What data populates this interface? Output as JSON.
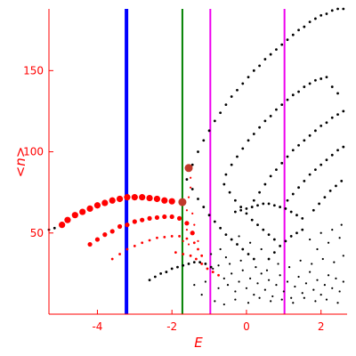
{
  "chart_data": {
    "type": "scatter",
    "xlabel": "E",
    "ylabel": "<n>",
    "xlim": [
      -5.3,
      2.7
    ],
    "ylim": [
      0,
      188
    ],
    "xticks": [
      "-4",
      "-2",
      "0",
      "2"
    ],
    "yticks": [
      "50",
      "100",
      "150"
    ],
    "xtick_values": [
      -4,
      -2,
      0,
      2
    ],
    "ytick_values": [
      50,
      100,
      150
    ],
    "grid": false,
    "colors": {
      "axis": "#ff0000",
      "points_black": "#000000",
      "points_red": "#ff0000",
      "highlight": "#c0392b",
      "blue_line": "#0000ff",
      "green_line": "#008000",
      "magenta_line": "#ee00ee"
    },
    "vertical_lines": [
      {
        "x": -3.22,
        "color": "#0000ff",
        "style": "thick"
      },
      {
        "x": -1.72,
        "color": "#008000",
        "style": "medium"
      },
      {
        "x": -0.97,
        "color": "#ee00ee",
        "style": "medium"
      },
      {
        "x": 1.02,
        "color": "#ee00ee",
        "style": "medium"
      }
    ],
    "highlight_points": [
      {
        "x": -1.72,
        "y": 69
      },
      {
        "x": -1.55,
        "y": 90
      }
    ],
    "series": [
      {
        "color": "#ff0000",
        "size": "large",
        "points": [
          [
            -4.95,
            55
          ],
          [
            -4.8,
            58
          ],
          [
            -4.6,
            61
          ],
          [
            -4.4,
            63
          ],
          [
            -4.2,
            65
          ],
          [
            -4.0,
            67
          ],
          [
            -3.8,
            68.5
          ],
          [
            -3.6,
            70
          ],
          [
            -3.4,
            71
          ],
          [
            -3.2,
            72
          ],
          [
            -3.0,
            72
          ],
          [
            -2.8,
            72
          ],
          [
            -2.6,
            71.5
          ],
          [
            -2.4,
            71
          ],
          [
            -2.2,
            70
          ],
          [
            -2.0,
            69.5
          ]
        ]
      },
      {
        "color": "#ff0000",
        "size": "medium",
        "points": [
          [
            -4.2,
            43
          ],
          [
            -4.0,
            46
          ],
          [
            -3.8,
            49
          ],
          [
            -3.6,
            51
          ],
          [
            -3.4,
            54
          ],
          [
            -3.2,
            55
          ],
          [
            -3.0,
            57
          ],
          [
            -2.8,
            58
          ],
          [
            -2.6,
            59
          ],
          [
            -2.4,
            59.5
          ],
          [
            -2.2,
            60
          ],
          [
            -2.0,
            60
          ],
          [
            -1.8,
            59
          ],
          [
            -1.6,
            56
          ],
          [
            -1.45,
            50
          ]
        ]
      },
      {
        "color": "#ff0000",
        "size": "small",
        "points": [
          [
            -3.6,
            34
          ],
          [
            -3.4,
            37
          ],
          [
            -3.2,
            40
          ],
          [
            -3.0,
            42
          ],
          [
            -2.8,
            44
          ],
          [
            -2.6,
            45.5
          ],
          [
            -2.4,
            47
          ],
          [
            -2.2,
            47.5
          ],
          [
            -2.0,
            48
          ],
          [
            -1.8,
            48
          ],
          [
            -1.6,
            46.5
          ],
          [
            -1.4,
            44
          ],
          [
            -1.3,
            40
          ],
          [
            -1.2,
            36
          ]
        ]
      },
      {
        "color": "#ff0000",
        "size": "small",
        "points": [
          [
            -1.9,
            38
          ],
          [
            -1.7,
            37
          ],
          [
            -1.5,
            36
          ],
          [
            -1.35,
            34
          ],
          [
            -1.2,
            31
          ],
          [
            -1.05,
            28
          ],
          [
            -0.9,
            26
          ],
          [
            -0.75,
            24
          ]
        ]
      },
      {
        "color": "#ff0000",
        "size": "tiny",
        "points": [
          [
            -1.6,
            64
          ],
          [
            -1.55,
            72
          ],
          [
            -1.5,
            78
          ],
          [
            -1.5,
            84
          ],
          [
            -1.45,
            62
          ],
          [
            -1.4,
            55
          ],
          [
            -1.6,
            52
          ],
          [
            -1.7,
            45
          ],
          [
            -1.55,
            43
          ],
          [
            -1.3,
            45
          ]
        ]
      },
      {
        "color": "#000000",
        "size": "small",
        "points": [
          [
            -5.3,
            52
          ],
          [
            -5.15,
            53
          ]
        ]
      },
      {
        "color": "#000000",
        "size": "small",
        "points": [
          [
            -1.45,
            92
          ],
          [
            -1.3,
            100
          ],
          [
            -1.15,
            107
          ],
          [
            -1.0,
            113
          ],
          [
            -0.85,
            119
          ],
          [
            -0.7,
            124
          ],
          [
            -0.55,
            129
          ],
          [
            -0.4,
            134
          ],
          [
            -0.25,
            138
          ],
          [
            -0.1,
            142
          ],
          [
            0.05,
            146
          ],
          [
            0.2,
            150
          ],
          [
            0.35,
            153
          ],
          [
            0.5,
            157
          ],
          [
            0.65,
            160
          ],
          [
            0.8,
            163
          ],
          [
            0.95,
            166
          ],
          [
            1.1,
            169
          ],
          [
            1.25,
            172
          ],
          [
            1.4,
            175
          ],
          [
            1.55,
            177
          ],
          [
            1.7,
            180
          ],
          [
            1.85,
            182
          ],
          [
            2.0,
            184
          ],
          [
            2.15,
            185
          ],
          [
            2.3,
            187
          ],
          [
            2.45,
            188
          ],
          [
            2.6,
            188
          ]
        ]
      },
      {
        "color": "#000000",
        "size": "small",
        "points": [
          [
            -0.55,
            86
          ],
          [
            -0.4,
            92
          ],
          [
            -0.25,
            97
          ],
          [
            -0.1,
            102
          ],
          [
            0.05,
            107
          ],
          [
            0.2,
            111
          ],
          [
            0.35,
            115
          ],
          [
            0.5,
            119
          ],
          [
            0.65,
            122
          ],
          [
            0.8,
            126
          ],
          [
            0.95,
            129
          ],
          [
            1.1,
            132
          ],
          [
            1.25,
            135
          ],
          [
            1.4,
            137
          ],
          [
            1.55,
            140
          ],
          [
            1.7,
            142
          ],
          [
            1.85,
            144
          ],
          [
            2.0,
            145
          ],
          [
            2.15,
            146
          ],
          [
            2.3,
            140
          ],
          [
            2.45,
            136
          ]
        ]
      },
      {
        "color": "#000000",
        "size": "small",
        "points": [
          [
            0.2,
            70
          ],
          [
            0.35,
            75
          ],
          [
            0.5,
            80
          ],
          [
            0.65,
            85
          ],
          [
            0.8,
            89
          ],
          [
            0.95,
            93
          ],
          [
            1.1,
            97
          ],
          [
            1.25,
            101
          ],
          [
            1.4,
            104
          ],
          [
            1.55,
            107
          ],
          [
            1.7,
            110
          ],
          [
            1.85,
            113
          ],
          [
            2.0,
            116
          ],
          [
            2.15,
            118
          ],
          [
            2.3,
            121
          ],
          [
            2.45,
            123
          ],
          [
            2.6,
            125
          ]
        ]
      },
      {
        "color": "#000000",
        "size": "small",
        "points": [
          [
            1.1,
            70
          ],
          [
            1.25,
            74
          ],
          [
            1.4,
            78
          ],
          [
            1.55,
            82
          ],
          [
            1.7,
            86
          ],
          [
            1.85,
            89
          ],
          [
            2.0,
            92
          ],
          [
            2.15,
            95
          ],
          [
            2.3,
            98
          ],
          [
            2.45,
            101
          ],
          [
            2.6,
            103
          ]
        ]
      },
      {
        "color": "#000000",
        "size": "small",
        "points": [
          [
            1.8,
            64
          ],
          [
            1.95,
            68
          ],
          [
            2.1,
            72
          ],
          [
            2.25,
            76
          ],
          [
            2.4,
            79
          ],
          [
            2.55,
            82
          ]
        ]
      },
      {
        "color": "#000000",
        "size": "small",
        "points": [
          [
            -1.6,
            83
          ],
          [
            -1.45,
            77
          ],
          [
            -1.3,
            71
          ],
          [
            -1.15,
            66
          ],
          [
            -1.0,
            61
          ],
          [
            -0.85,
            57
          ],
          [
            -0.7,
            53
          ],
          [
            -0.55,
            49
          ],
          [
            -0.4,
            46
          ],
          [
            -0.25,
            43
          ],
          [
            -0.1,
            40
          ],
          [
            0.05,
            37
          ],
          [
            0.2,
            34
          ]
        ]
      },
      {
        "color": "#000000",
        "size": "small",
        "points": [
          [
            -0.6,
            80
          ],
          [
            -0.45,
            75
          ],
          [
            -0.3,
            70
          ],
          [
            -0.15,
            66
          ],
          [
            0.0,
            62
          ],
          [
            0.15,
            58
          ],
          [
            0.3,
            55
          ],
          [
            0.45,
            52
          ],
          [
            0.6,
            49
          ],
          [
            0.75,
            46
          ]
        ]
      },
      {
        "color": "#000000",
        "size": "small",
        "points": [
          [
            -0.3,
            63
          ],
          [
            -0.15,
            64
          ],
          [
            0.0,
            65
          ],
          [
            0.15,
            66
          ],
          [
            0.3,
            67
          ],
          [
            0.45,
            68
          ],
          [
            0.6,
            68
          ],
          [
            0.75,
            67
          ],
          [
            0.9,
            66
          ],
          [
            1.05,
            65
          ],
          [
            1.2,
            63
          ],
          [
            1.35,
            61
          ],
          [
            1.5,
            59
          ]
        ]
      },
      {
        "color": "#000000",
        "size": "small",
        "points": [
          [
            -2.6,
            21
          ],
          [
            -2.45,
            23
          ],
          [
            -2.3,
            25
          ],
          [
            -2.15,
            26
          ],
          [
            -2.0,
            28
          ],
          [
            -1.85,
            29
          ],
          [
            -1.7,
            30
          ],
          [
            -1.55,
            31
          ],
          [
            -1.4,
            32
          ],
          [
            -1.25,
            32
          ],
          [
            -1.1,
            31
          ],
          [
            -0.95,
            29
          ]
        ]
      },
      {
        "color": "#000000",
        "size": "small",
        "points": [
          [
            0.6,
            34
          ],
          [
            0.75,
            38
          ],
          [
            0.9,
            42
          ],
          [
            1.05,
            45
          ],
          [
            1.2,
            48
          ],
          [
            1.35,
            50
          ],
          [
            1.5,
            52
          ]
        ]
      },
      {
        "color": "#000000",
        "size": "tiny",
        "points": [
          [
            -0.9,
            28
          ],
          [
            -0.75,
            30
          ],
          [
            -0.6,
            22
          ],
          [
            -0.5,
            18
          ],
          [
            -0.4,
            25
          ],
          [
            -0.3,
            14
          ],
          [
            -0.2,
            20
          ],
          [
            -0.1,
            27
          ],
          [
            0.0,
            16
          ],
          [
            0.1,
            22
          ],
          [
            0.2,
            12
          ],
          [
            0.3,
            19
          ],
          [
            0.4,
            25
          ],
          [
            0.5,
            15
          ],
          [
            0.6,
            21
          ],
          [
            0.7,
            11
          ],
          [
            0.8,
            18
          ],
          [
            0.9,
            24
          ],
          [
            1.0,
            14
          ],
          [
            1.1,
            20
          ],
          [
            1.2,
            10
          ],
          [
            1.3,
            17
          ],
          [
            1.4,
            23
          ],
          [
            1.5,
            13
          ],
          [
            1.6,
            19
          ],
          [
            1.7,
            26
          ],
          [
            1.8,
            15
          ],
          [
            1.9,
            21
          ],
          [
            2.0,
            12
          ],
          [
            2.1,
            18
          ],
          [
            2.2,
            24
          ],
          [
            2.3,
            16
          ],
          [
            2.4,
            22
          ],
          [
            2.5,
            14
          ],
          [
            2.6,
            20
          ],
          [
            -0.85,
            8
          ],
          [
            -0.6,
            6
          ],
          [
            -0.3,
            9
          ],
          [
            0.05,
            7
          ],
          [
            0.35,
            10
          ],
          [
            0.65,
            8
          ],
          [
            0.95,
            9
          ],
          [
            1.25,
            7
          ],
          [
            1.55,
            10
          ],
          [
            1.85,
            8
          ],
          [
            2.15,
            9
          ],
          [
            2.45,
            7
          ],
          [
            -1.2,
            12
          ],
          [
            -1.4,
            18
          ],
          [
            -1.1,
            20
          ],
          [
            -0.75,
            16
          ],
          [
            -0.45,
            31
          ],
          [
            -0.15,
            33
          ],
          [
            0.25,
            29
          ],
          [
            0.55,
            27
          ],
          [
            0.85,
            31
          ],
          [
            1.15,
            29
          ],
          [
            1.45,
            33
          ],
          [
            1.75,
            31
          ],
          [
            2.05,
            34
          ],
          [
            2.35,
            32
          ],
          [
            2.6,
            36
          ],
          [
            1.9,
            40
          ],
          [
            2.2,
            44
          ],
          [
            2.5,
            47
          ],
          [
            2.3,
            52
          ],
          [
            2.55,
            55
          ],
          [
            2.0,
            50
          ],
          [
            1.7,
            46
          ],
          [
            0.4,
            40
          ],
          [
            0.1,
            44
          ],
          [
            -0.2,
            48
          ],
          [
            -0.7,
            40
          ],
          [
            -0.55,
            35
          ],
          [
            -0.95,
            37
          ]
        ]
      }
    ]
  }
}
